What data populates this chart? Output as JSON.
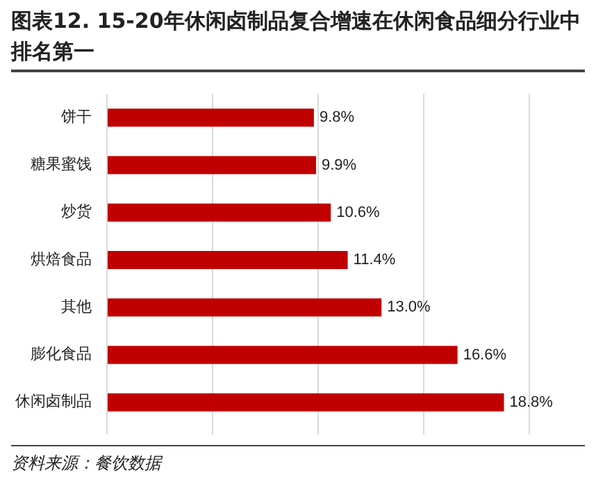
{
  "chart_data": {
    "type": "bar",
    "orientation": "horizontal",
    "title": "图表12. 15-20年休闲卤制品复合增速在休闲食品细分行业中排名第一",
    "categories": [
      "饼干",
      "糖果蜜饯",
      "炒货",
      "烘焙食品",
      "其他",
      "膨化食品",
      "休闲卤制品"
    ],
    "values": [
      9.8,
      9.9,
      10.6,
      11.4,
      13.0,
      16.6,
      18.8
    ],
    "value_labels": [
      "9.8%",
      "9.9%",
      "10.6%",
      "11.4%",
      "13.0%",
      "16.6%",
      "18.8%"
    ],
    "color": "#c00000",
    "xlim": [
      0,
      20
    ],
    "xticks": [
      {
        "value": 0,
        "label": null
      },
      {
        "value": 5,
        "label": null
      },
      {
        "value": 10,
        "label": null
      },
      {
        "value": 15,
        "label": null
      },
      {
        "value": 20,
        "label": null
      }
    ],
    "tick_labels": "y",
    "grid": "x",
    "legend": false,
    "annotations": [
      "资料来源：餐饮数据"
    ]
  }
}
